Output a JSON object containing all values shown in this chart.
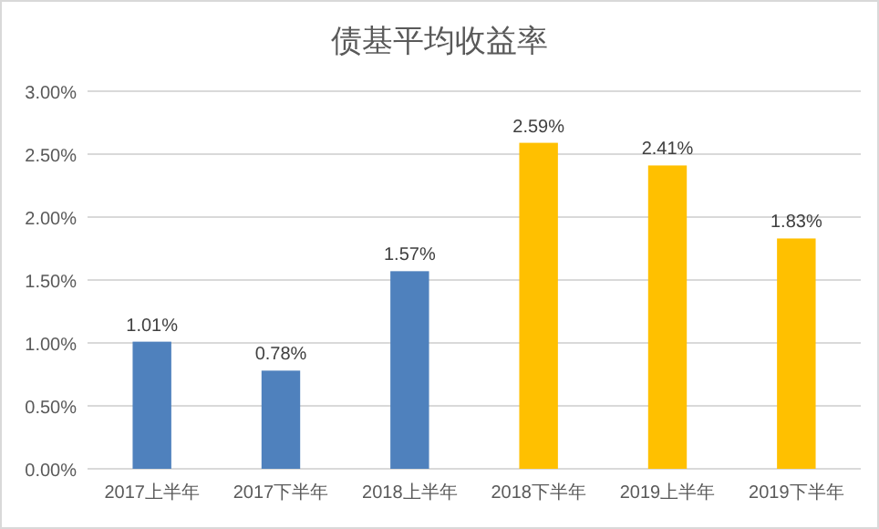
{
  "chart_data": {
    "type": "bar",
    "title": "债基平均收益率",
    "categories": [
      "2017上半年",
      "2017下半年",
      "2018上半年",
      "2018下半年",
      "2019上半年",
      "2019下半年"
    ],
    "values": [
      1.01,
      0.78,
      1.57,
      2.59,
      2.41,
      1.83
    ],
    "colors": [
      "#4f81bd",
      "#4f81bd",
      "#4f81bd",
      "#ffc000",
      "#ffc000",
      "#ffc000"
    ],
    "value_labels": [
      "1.01%",
      "0.78%",
      "1.57%",
      "2.59%",
      "2.41%",
      "1.83%"
    ],
    "ylim": [
      0,
      3
    ],
    "yticks": [
      {
        "value": 0,
        "label": "0.00%"
      },
      {
        "value": 0.5,
        "label": "0.50%"
      },
      {
        "value": 1,
        "label": "1.00%"
      },
      {
        "value": 1.5,
        "label": "1.50%"
      },
      {
        "value": 2,
        "label": "2.00%"
      },
      {
        "value": 2.5,
        "label": "2.50%"
      },
      {
        "value": 3,
        "label": "3.00%"
      }
    ],
    "grid": "y"
  }
}
